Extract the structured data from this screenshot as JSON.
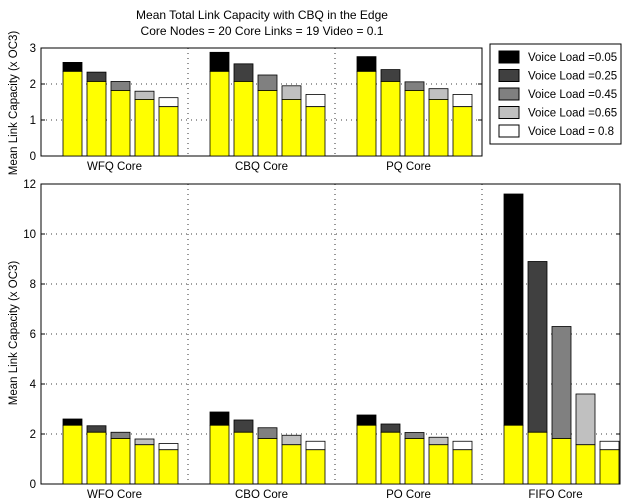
{
  "colors": {
    "base": "#ffff00",
    "loads": [
      "#000000",
      "#404040",
      "#808080",
      "#c0c0c0",
      "#ffffff"
    ]
  },
  "chart_data": [
    {
      "type": "bar",
      "stacked": true,
      "title": [
        "Mean Total Link Capacity with CBQ in the Edge",
        "Core Nodes = 20 Core Links = 19 Video = 0.1"
      ],
      "xlabel": "",
      "ylabel": "Mean Link Capacity (x OC3)",
      "ylim": [
        0,
        3
      ],
      "yticks": [
        0,
        1,
        2,
        3
      ],
      "grid": true,
      "legend": "outside-right",
      "categories": [
        "WFQ Core",
        "CBQ Core",
        "PQ Core"
      ],
      "legend_entries": [
        "Voice Load =0.05",
        "Voice Load =0.25",
        "Voice Load =0.45",
        "Voice Load =0.65",
        "Voice Load = 0.8"
      ],
      "base_values": [
        [
          2.35,
          2.07,
          1.82,
          1.57,
          1.37
        ],
        [
          2.35,
          2.07,
          1.82,
          1.57,
          1.37
        ],
        [
          2.35,
          2.07,
          1.82,
          1.57,
          1.37
        ]
      ],
      "total_values": [
        [
          2.6,
          2.33,
          2.07,
          1.8,
          1.62
        ],
        [
          2.88,
          2.56,
          2.25,
          1.95,
          1.71
        ],
        [
          2.76,
          2.4,
          2.06,
          1.87,
          1.71
        ]
      ]
    },
    {
      "type": "bar",
      "stacked": true,
      "xlabel": "",
      "ylabel": "Mean Link Capacity (x OC3)",
      "ylim": [
        0,
        12
      ],
      "yticks": [
        0,
        2,
        4,
        6,
        8,
        10,
        12
      ],
      "grid": true,
      "categories": [
        "WFQ Core",
        "CBQ Core",
        "PQ Core",
        "FIFO Core"
      ],
      "base_values": [
        [
          2.35,
          2.07,
          1.82,
          1.57,
          1.37
        ],
        [
          2.35,
          2.07,
          1.82,
          1.57,
          1.37
        ],
        [
          2.35,
          2.07,
          1.82,
          1.57,
          1.37
        ],
        [
          2.35,
          2.07,
          1.82,
          1.57,
          1.37
        ]
      ],
      "total_values": [
        [
          2.6,
          2.33,
          2.07,
          1.8,
          1.62
        ],
        [
          2.88,
          2.56,
          2.25,
          1.95,
          1.71
        ],
        [
          2.76,
          2.4,
          2.06,
          1.87,
          1.71
        ],
        [
          11.6,
          8.9,
          6.3,
          3.6,
          1.71
        ]
      ]
    }
  ]
}
